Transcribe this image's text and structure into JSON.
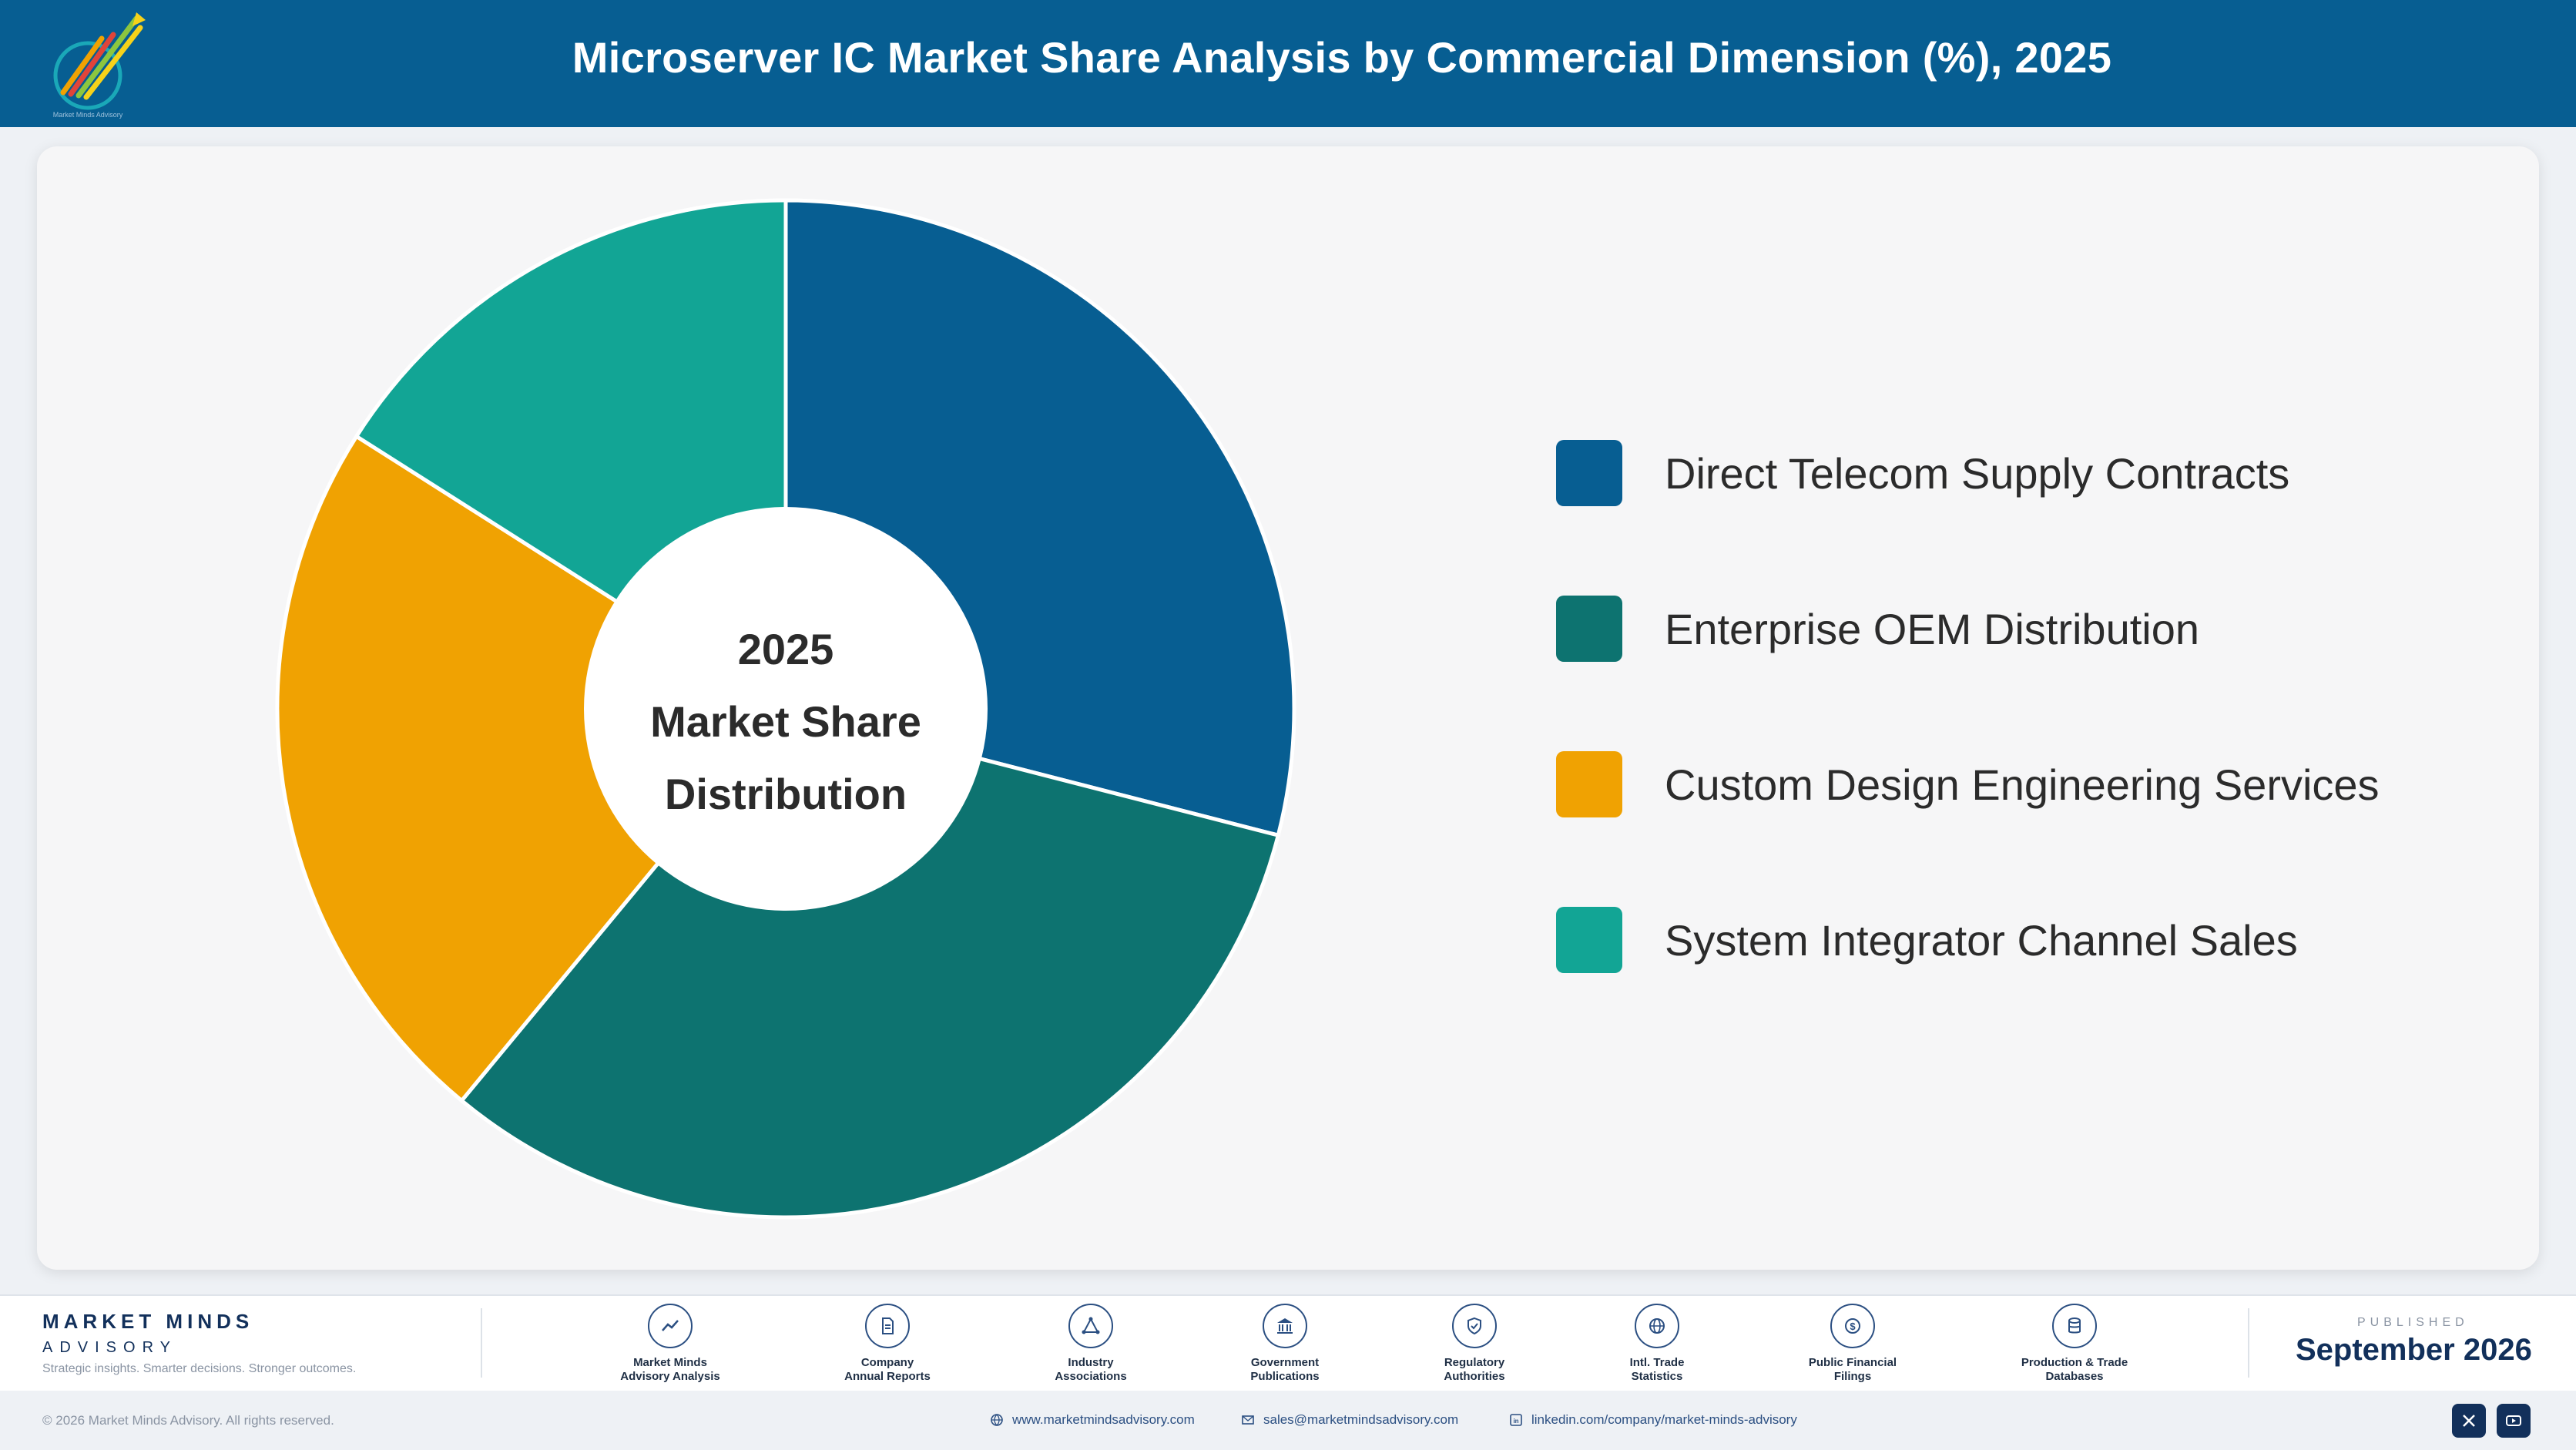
{
  "header": {
    "title": "Microserver IC Market Share Analysis by Commercial Dimension (%), 2025",
    "logo_text": "Market Minds Advisory"
  },
  "chart_data": {
    "type": "pie",
    "subtype": "donut",
    "center_label": [
      "2025",
      "Market Share",
      "Distribution"
    ],
    "categories": [
      "Direct Telecom Supply Contracts",
      "Enterprise OEM Distribution",
      "Custom Design Engineering Services",
      "System Integrator Channel Sales"
    ],
    "values": [
      29,
      32,
      23,
      16
    ],
    "colors": [
      "#075e92",
      "#0d7370",
      "#f0a202",
      "#12a595"
    ],
    "legend_position": "right"
  },
  "footer": {
    "brand_name": "MARKET MINDS",
    "brand_sub": "ADVISORY",
    "tagline": "Strategic insights. Smarter decisions. Stronger outcomes.",
    "sources": [
      {
        "label": "Market Minds\nAdvisory Analysis",
        "icon": "chart-trend-icon"
      },
      {
        "label": "Company\nAnnual Reports",
        "icon": "document-icon"
      },
      {
        "label": "Industry\nAssociations",
        "icon": "network-icon"
      },
      {
        "label": "Government\nPublications",
        "icon": "government-building-icon"
      },
      {
        "label": "Regulatory\nAuthorities",
        "icon": "shield-icon"
      },
      {
        "label": "Intl. Trade\nStatistics",
        "icon": "globe-icon"
      },
      {
        "label": "Public Financial\nFilings",
        "icon": "dollar-coin-icon"
      },
      {
        "label": "Production & Trade\nDatabases",
        "icon": "database-icon"
      }
    ],
    "published_label": "PUBLISHED",
    "published_date": "September 2026",
    "copyright": "© 2026 Market Minds Advisory. All rights reserved.",
    "website": "www.marketmindsadvisory.com",
    "email": "sales@marketmindsadvisory.com",
    "linkedin": "linkedin.com/company/market-minds-advisory"
  }
}
